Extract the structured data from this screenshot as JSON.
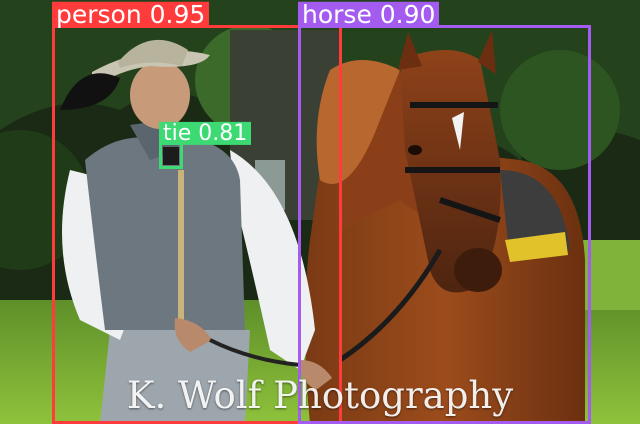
{
  "image": {
    "subject": "photo-man-in-vest-with-chestnut-horse"
  },
  "detections": [
    {
      "id": "person",
      "label": "person 0.95",
      "color": "#ff3b3b"
    },
    {
      "id": "horse",
      "label": "horse 0.90",
      "color": "#a45cf0"
    },
    {
      "id": "tie",
      "label": "tie 0.81",
      "color": "#3dda74"
    }
  ],
  "watermark": {
    "text": "K. Wolf Photography"
  }
}
